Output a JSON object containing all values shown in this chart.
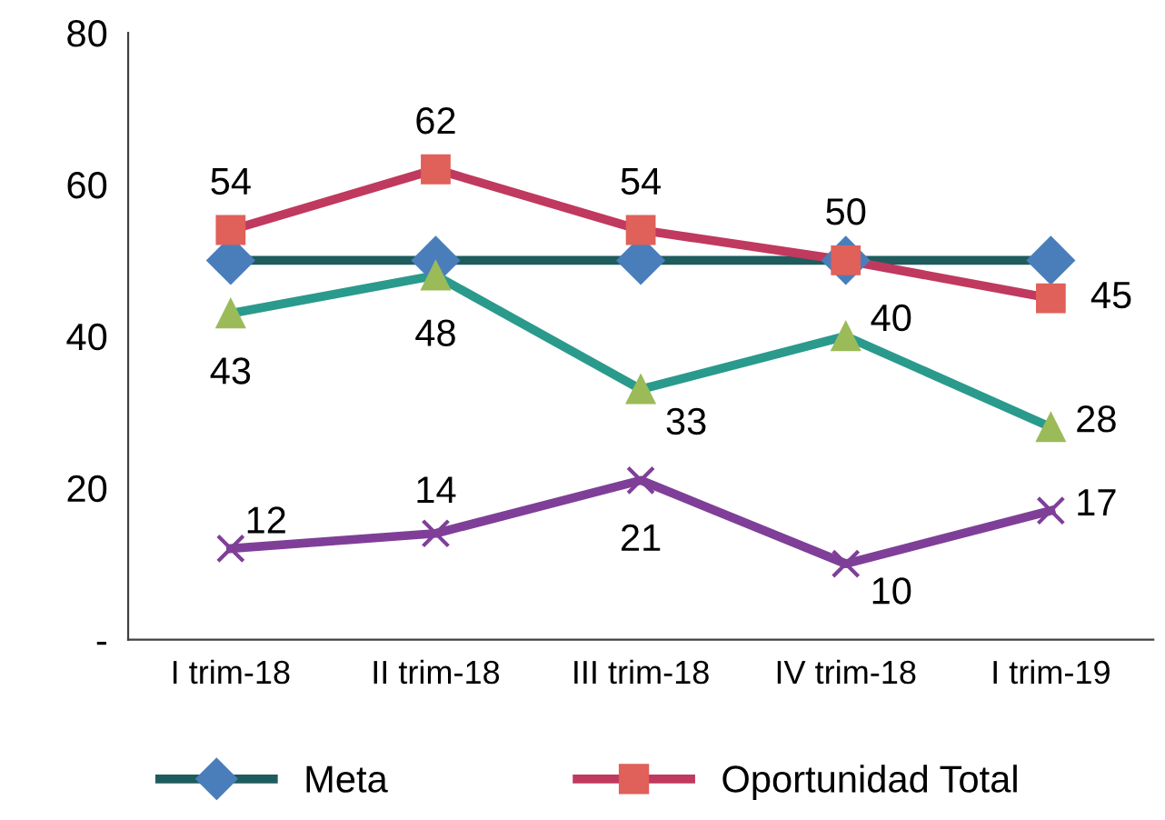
{
  "chart_data": {
    "type": "line",
    "categories": [
      "I trim-18",
      "II trim-18",
      "III trim-18",
      "IV trim-18",
      "I trim-19"
    ],
    "series": [
      {
        "name": "Meta",
        "color": "#1f5c5e",
        "colors": [
          "#4a7ebb",
          "#4a7ebb",
          "#4a7ebb",
          "#4a7ebb",
          "#4a7ebb"
        ],
        "marker": "diamond",
        "values": [
          50,
          50,
          50,
          50,
          50
        ]
      },
      {
        "name": "Oportunidad Total",
        "color": "#c0395e",
        "colors": [
          "#e0605a",
          "#e0605a",
          "#e0605a",
          "#e0605a",
          "#e0605a"
        ],
        "marker": "square",
        "values": [
          54,
          62,
          54,
          50,
          45
        ],
        "value_labels": [
          "54",
          "62",
          "54",
          "50",
          "45"
        ]
      },
      {
        "color": "#2a9a8c",
        "colors": [
          "#9bbb59",
          "#9bbb59",
          "#9bbb59",
          "#9bbb59",
          "#9bbb59"
        ],
        "marker": "triangle",
        "values": [
          43,
          48,
          33,
          40,
          28
        ],
        "value_labels": [
          "43",
          "48",
          "33",
          "40",
          "28"
        ]
      },
      {
        "color": "#7f3f98",
        "colors": [
          "#7f3f98",
          "#7f3f98",
          "#7f3f98",
          "#7f3f98",
          "#7f3f98"
        ],
        "marker": "cross",
        "values": [
          12,
          14,
          21,
          10,
          17
        ],
        "value_labels": [
          "12",
          "14",
          "21",
          "10",
          "17"
        ]
      }
    ],
    "ylim": [
      0,
      80
    ],
    "yticks": [
      {
        "value": 0,
        "label": "-"
      },
      20,
      40,
      60,
      80
    ],
    "grid": false,
    "legend": "bottom"
  }
}
